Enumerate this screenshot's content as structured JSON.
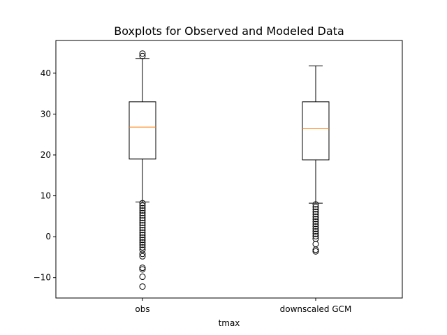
{
  "chart_data": {
    "type": "boxplot",
    "title": "Boxplots for Observed and Modeled Data",
    "xlabel": "tmax",
    "ylabel": "",
    "ylim": [
      -15,
      48
    ],
    "yticks": [
      -10,
      0,
      10,
      20,
      30,
      40
    ],
    "ytick_labels": [
      "−10",
      "0",
      "10",
      "20",
      "30",
      "40"
    ],
    "grid": false,
    "categories": [
      "obs",
      "downscaled GCM"
    ],
    "colors": {
      "box": "#000000",
      "median": "#ff7f0e",
      "flier": "#000000"
    },
    "boxes": [
      {
        "name": "obs",
        "whisker_low": 8.5,
        "q1": 19.0,
        "median": 26.8,
        "q3": 33.0,
        "whisker_high": 43.6,
        "fliers": [
          44.2,
          44.8,
          8.2,
          7.6,
          7.0,
          6.4,
          5.8,
          5.2,
          4.6,
          4.0,
          3.4,
          2.8,
          2.2,
          1.6,
          1.0,
          0.4,
          -0.2,
          -0.8,
          -1.4,
          -2.0,
          -2.6,
          -3.2,
          -4.2,
          -4.8,
          -7.6,
          -8.0,
          -9.8,
          -12.2
        ]
      },
      {
        "name": "downscaled GCM",
        "whisker_low": 8.2,
        "q1": 18.8,
        "median": 26.4,
        "q3": 33.0,
        "whisker_high": 41.8,
        "fliers": [
          7.9,
          7.3,
          6.7,
          6.1,
          5.5,
          4.9,
          4.3,
          3.7,
          3.1,
          2.5,
          1.9,
          1.3,
          0.7,
          0.1,
          -0.5,
          -1.8,
          -3.2,
          -3.6
        ]
      }
    ]
  }
}
